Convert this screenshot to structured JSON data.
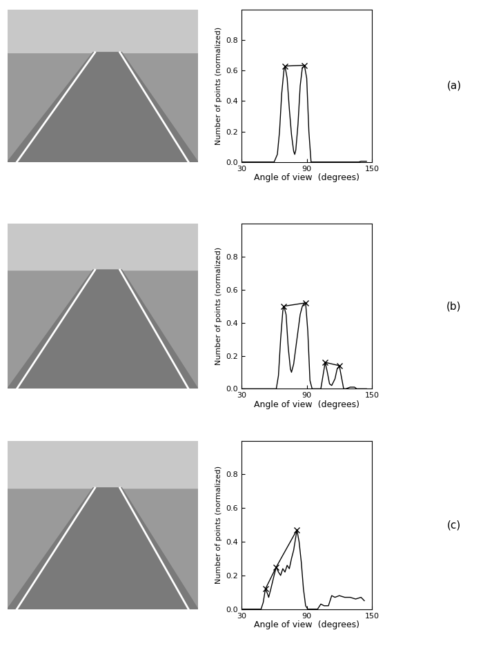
{
  "chart_data": [
    {
      "type": "line",
      "annotation": "(a)",
      "x_label": "Angle of view  (degrees)",
      "y_label": "Number of points (normalized)",
      "xlim": [
        30,
        150
      ],
      "xticks": [
        30,
        90,
        150
      ],
      "ylim": [
        0,
        1.0
      ],
      "yticks": [
        {
          "value": 0,
          "label": "0.0"
        },
        {
          "value": 0.2,
          "label": "0.2"
        },
        {
          "value": 0.4,
          "label": "0.4"
        },
        {
          "value": 0.6,
          "label": "0.6"
        },
        {
          "value": 0.8,
          "label": "0.8"
        }
      ],
      "series": [
        {
          "color": "#000000",
          "line_style": "solid",
          "marker": "none",
          "x": [
            30,
            60,
            63,
            65,
            67,
            69,
            70,
            72,
            74,
            76,
            78,
            79,
            80,
            82,
            84,
            86,
            88,
            90,
            92,
            94,
            100,
            138,
            140,
            145
          ],
          "values": [
            0,
            0,
            0.05,
            0.2,
            0.45,
            0.6,
            0.63,
            0.55,
            0.35,
            0.18,
            0.07,
            0.05,
            0.08,
            0.25,
            0.5,
            0.62,
            0.63,
            0.55,
            0.2,
            0,
            0,
            0,
            0.005,
            0.005
          ]
        },
        {
          "color": "#000000",
          "line_style": "solid",
          "marker": "x",
          "x": [
            70,
            88
          ],
          "values": [
            0.63,
            0.635
          ]
        }
      ]
    },
    {
      "type": "line",
      "annotation": "(b)",
      "x_label": "Angle of view  (degrees)",
      "y_label": "Number of points (normalized)",
      "xlim": [
        30,
        150
      ],
      "xticks": [
        30,
        90,
        150
      ],
      "ylim": [
        0,
        1.0
      ],
      "yticks": [
        {
          "value": 0,
          "label": "0.0"
        },
        {
          "value": 0.2,
          "label": "0.2"
        },
        {
          "value": 0.4,
          "label": "0.4"
        },
        {
          "value": 0.6,
          "label": "0.6"
        },
        {
          "value": 0.8,
          "label": "0.8"
        }
      ],
      "series": [
        {
          "color": "#000000",
          "line_style": "solid",
          "marker": "none",
          "x": [
            30,
            62,
            64,
            66,
            68,
            69,
            71,
            73,
            75,
            76,
            78,
            80,
            82,
            84,
            86,
            88,
            89,
            91,
            93,
            95,
            103,
            105,
            107,
            109,
            111,
            113,
            116,
            118,
            120,
            122,
            124,
            126,
            130,
            134,
            136,
            145
          ],
          "values": [
            0,
            0,
            0.08,
            0.3,
            0.47,
            0.5,
            0.45,
            0.25,
            0.12,
            0.1,
            0.15,
            0.25,
            0.35,
            0.45,
            0.5,
            0.52,
            0.52,
            0.35,
            0.05,
            0,
            0,
            0.08,
            0.16,
            0.1,
            0.03,
            0.02,
            0.06,
            0.12,
            0.14,
            0.07,
            0,
            0,
            0.01,
            0.01,
            0,
            0
          ]
        },
        {
          "color": "#000000",
          "line_style": "solid",
          "marker": "x",
          "x": [
            69,
            89
          ],
          "values": [
            0.5,
            0.52
          ]
        },
        {
          "color": "#000000",
          "line_style": "solid",
          "marker": "x",
          "x": [
            107,
            120
          ],
          "values": [
            0.16,
            0.14
          ]
        }
      ]
    },
    {
      "type": "line",
      "annotation": "(c)",
      "x_label": "Angle of view  (degrees)",
      "y_label": "Number of points (normalized)",
      "xlim": [
        30,
        150
      ],
      "xticks": [
        30,
        90,
        150
      ],
      "ylim": [
        0,
        1.0
      ],
      "yticks": [
        {
          "value": 0,
          "label": "0.0"
        },
        {
          "value": 0.2,
          "label": "0.2"
        },
        {
          "value": 0.4,
          "label": "0.4"
        },
        {
          "value": 0.6,
          "label": "0.6"
        },
        {
          "value": 0.8,
          "label": "0.8"
        }
      ],
      "series": [
        {
          "color": "#000000",
          "line_style": "solid",
          "marker": "none",
          "x": [
            30,
            48,
            50,
            52,
            54,
            55,
            57,
            60,
            62,
            64,
            66,
            68,
            70,
            72,
            74,
            76,
            78,
            80,
            81,
            83,
            85,
            87,
            89,
            91,
            100,
            103,
            106,
            110,
            113,
            116,
            120,
            125,
            130,
            135,
            140,
            143
          ],
          "values": [
            0,
            0,
            0.04,
            0.12,
            0.09,
            0.07,
            0.12,
            0.2,
            0.25,
            0.22,
            0.2,
            0.24,
            0.22,
            0.26,
            0.24,
            0.3,
            0.35,
            0.43,
            0.47,
            0.4,
            0.28,
            0.12,
            0.02,
            0,
            0,
            0.03,
            0.02,
            0.02,
            0.08,
            0.07,
            0.08,
            0.07,
            0.07,
            0.06,
            0.07,
            0.05
          ]
        },
        {
          "color": "#000000",
          "line_style": "solid",
          "marker": "x",
          "x": [
            52,
            62,
            81
          ],
          "values": [
            0.12,
            0.25,
            0.47
          ]
        }
      ]
    }
  ]
}
